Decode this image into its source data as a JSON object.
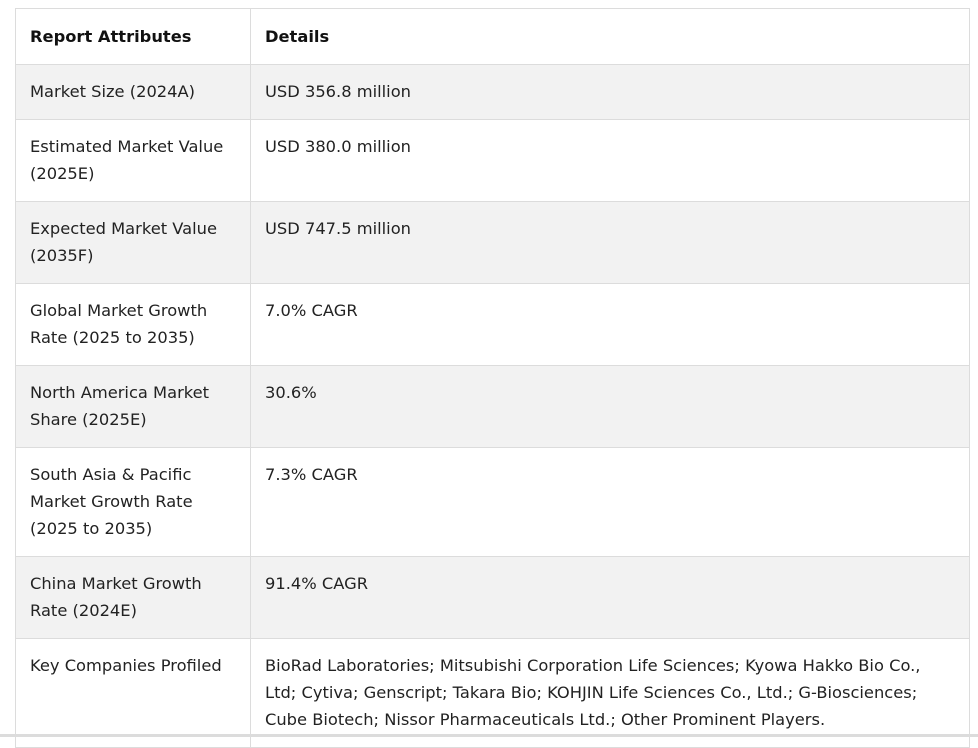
{
  "table": {
    "headers": [
      "Report Attributes",
      "Details"
    ],
    "rows": [
      {
        "attribute": "Market Size (2024A)",
        "details": "USD 356.8 million"
      },
      {
        "attribute": "Estimated Market Value (2025E)",
        "details": "USD 380.0 million"
      },
      {
        "attribute": "Expected Market Value (2035F)",
        "details": "USD 747.5 million"
      },
      {
        "attribute": "Global Market Growth Rate (2025 to 2035)",
        "details": "7.0% CAGR"
      },
      {
        "attribute": "North America Market Share (2025E)",
        "details": "30.6%"
      },
      {
        "attribute": "South Asia & Pacific Market Growth Rate (2025 to 2035)",
        "details": "7.3% CAGR"
      },
      {
        "attribute": "China Market Growth Rate (2024E)",
        "details": "91.4% CAGR"
      },
      {
        "attribute": "Key Companies Profiled",
        "details": "BioRad Laboratories; Mitsubishi Corporation Life Sciences; Kyowa Hakko Bio Co., Ltd; Cytiva; Genscript; Takara Bio; KOHJIN Life Sciences Co., Ltd.; G-Biosciences; Cube Biotech; Nissor Pharmaceuticals Ltd.; Other Prominent Players."
      }
    ]
  }
}
